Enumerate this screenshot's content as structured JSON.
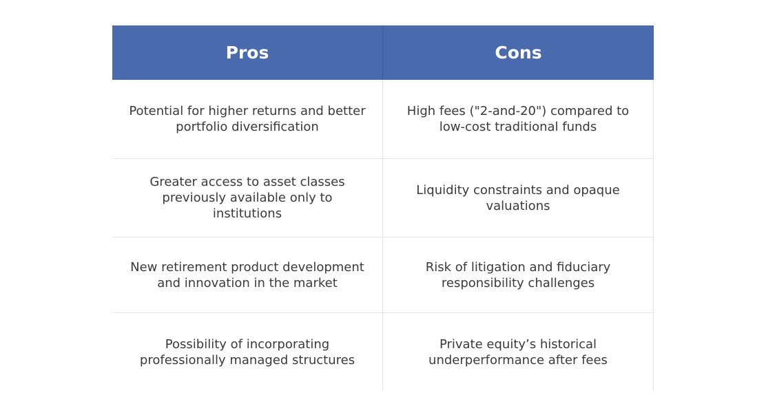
{
  "table": {
    "headers": {
      "pros": "Pros",
      "cons": "Cons"
    },
    "rows": [
      {
        "pros": "Potential for higher returns and better portfolio diversification",
        "cons": "High fees (\"2-and-20\") compared to low-cost traditional funds"
      },
      {
        "pros": "Greater access to asset classes previously available only to institutions",
        "cons": "Liquidity constraints and opaque valuations"
      },
      {
        "pros": "New retirement product development and innovation in the market",
        "cons": "Risk of litigation and fiduciary responsibility challenges"
      },
      {
        "pros": "Possibility of incorporating professionally managed structures",
        "cons": "Private equity’s historical underperformance after fees"
      }
    ],
    "colors": {
      "header_bg": "#4a6aae",
      "header_text": "#ffffff",
      "body_text": "#3a3a3a",
      "divider": "#e2e4e8"
    }
  }
}
